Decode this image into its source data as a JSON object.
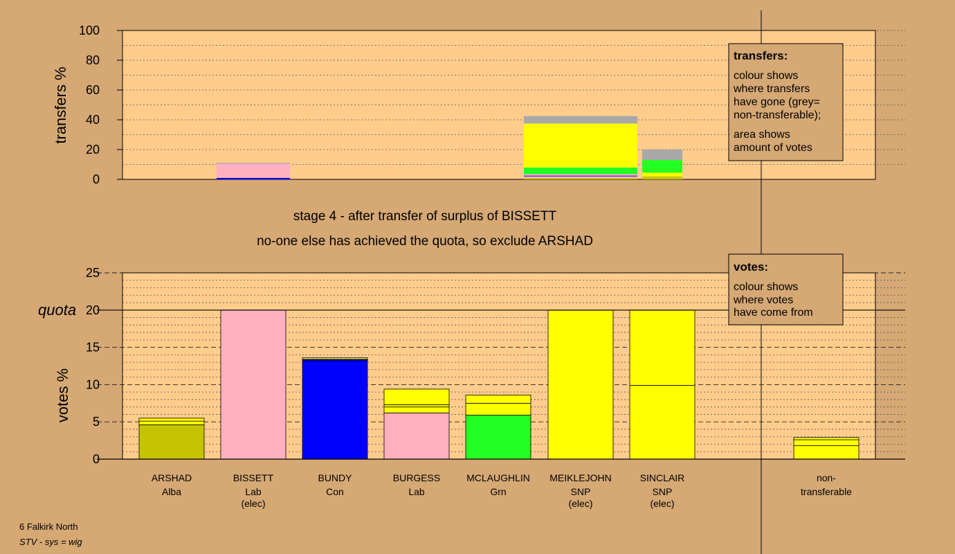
{
  "colors": {
    "background": "#d5a874",
    "plot": "#ffcc8c",
    "alba": "#c4c400",
    "lab": "#ffb0c0",
    "con": "#0000ff",
    "grn": "#22ff22",
    "snp": "#ffff00",
    "nontransferable": "#a8a8a8"
  },
  "stage_lines": [
    "stage 4 - after transfer of surplus of BISSETT",
    "no-one else has achieved the quota, so exclude ARSHAD"
  ],
  "transfers_legend": {
    "title": "transfers:",
    "lines": [
      "colour shows",
      "where transfers",
      "have gone (grey=",
      "non-transferable);",
      "area shows",
      "amount of votes"
    ]
  },
  "votes_legend": {
    "title": "votes:",
    "lines": [
      "colour shows",
      "where votes",
      "have come from"
    ]
  },
  "footer": {
    "constituency": "6 Falkirk North",
    "system": "STV - sys = wig"
  },
  "chart_data": [
    {
      "type": "bar",
      "title": "",
      "ylabel": "transfers %",
      "ylim": [
        0,
        100
      ],
      "yticks": [
        "0",
        "20",
        "40",
        "60",
        "80",
        "100"
      ],
      "bars": [
        {
          "candidate": "BISSETT",
          "segments": [
            {
              "party": "con",
              "value": 1.0
            },
            {
              "party": "lab",
              "value": 9.5
            },
            {
              "party": "nontransferable",
              "value": 0.6
            }
          ]
        },
        {
          "candidate": "MEIKLEJOHN",
          "segments": [
            {
              "party": "alba",
              "value": 1.0
            },
            {
              "party": "lab",
              "value": 1.0
            },
            {
              "party": "con",
              "value": 0.5
            },
            {
              "party": "lab",
              "value": 1.0
            },
            {
              "party": "grn",
              "value": 4.5
            },
            {
              "party": "snp",
              "value": 29.5
            },
            {
              "party": "nontransferable",
              "value": 5.0
            }
          ]
        },
        {
          "candidate": "SINCLAIR",
          "segments": [
            {
              "party": "alba",
              "value": 2.0
            },
            {
              "party": "snp",
              "value": 2.5
            },
            {
              "party": "grn",
              "value": 8.5
            },
            {
              "party": "nontransferable",
              "value": 7.0
            }
          ]
        }
      ]
    },
    {
      "type": "bar",
      "title": "",
      "ylabel": "votes %",
      "ylim": [
        0,
        25
      ],
      "yticks": [
        "0",
        "5",
        "10",
        "15",
        "20",
        "25"
      ],
      "quota": 20,
      "quota_label": "quota",
      "categories": [
        "ARSHAD",
        "BISSETT",
        "BUNDY",
        "BURGESS",
        "MCLAUGHLIN",
        "MEIKLEJOHN",
        "SINCLAIR",
        "non-transferable"
      ],
      "party_labels": [
        "Alba",
        "Lab",
        "Con",
        "Lab",
        "Grn",
        "SNP",
        "SNP",
        "transferable"
      ],
      "status_labels": [
        "",
        "(elec)",
        "",
        "",
        "",
        "(elec)",
        "(elec)",
        ""
      ],
      "stacks": [
        [
          {
            "party": "alba",
            "value": 4.6
          },
          {
            "party": "snp",
            "value": 0.5
          },
          {
            "party": "snp",
            "value": 0.4
          }
        ],
        [
          {
            "party": "lab",
            "value": 20.0
          }
        ],
        [
          {
            "party": "con",
            "value": 13.2
          },
          {
            "party": "con",
            "value": 0.2
          },
          {
            "party": "snp",
            "value": 0.2
          }
        ],
        [
          {
            "party": "lab",
            "value": 6.2
          },
          {
            "party": "snp",
            "value": 0.8
          },
          {
            "party": "snp",
            "value": 0.3
          },
          {
            "party": "snp",
            "value": 2.1
          }
        ],
        [
          {
            "party": "grn",
            "value": 5.9
          },
          {
            "party": "snp",
            "value": 1.6
          },
          {
            "party": "snp",
            "value": 1.1
          }
        ],
        [
          {
            "party": "snp",
            "value": 20.0
          }
        ],
        [
          {
            "party": "snp",
            "value": 9.9
          },
          {
            "party": "snp",
            "value": 10.1
          }
        ],
        [
          {
            "party": "snp",
            "value": 1.8
          },
          {
            "party": "snp",
            "value": 0.8
          },
          {
            "party": "snp",
            "value": 0.3
          }
        ]
      ]
    }
  ]
}
